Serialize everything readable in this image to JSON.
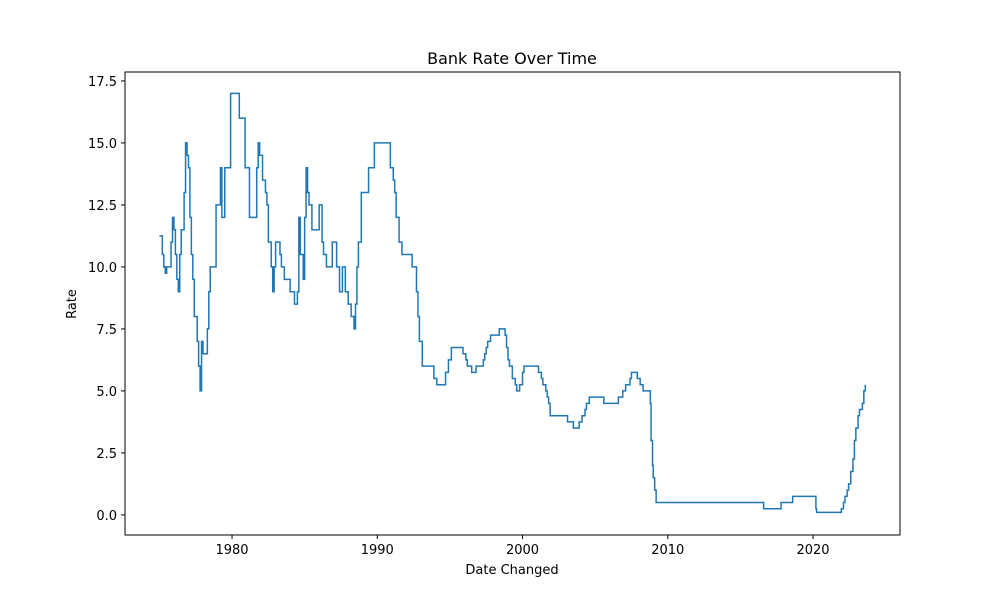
{
  "chart_data": {
    "type": "line",
    "drawstyle": "steps-post",
    "title": "Bank Rate Over Time",
    "xlabel": "Date Changed",
    "ylabel": "Rate",
    "color": "#1f77b4",
    "grid": false,
    "x": [
      1975.0,
      1975.2,
      1975.3,
      1975.4,
      1975.5,
      1975.8,
      1975.9,
      1976.0,
      1976.1,
      1976.2,
      1976.3,
      1976.4,
      1976.5,
      1976.7,
      1976.8,
      1976.9,
      1977.0,
      1977.1,
      1977.2,
      1977.3,
      1977.4,
      1977.6,
      1977.7,
      1977.8,
      1977.9,
      1978.0,
      1978.3,
      1978.4,
      1978.5,
      1978.9,
      1979.2,
      1979.3,
      1979.5,
      1979.9,
      1980.5,
      1980.9,
      1981.2,
      1981.7,
      1981.8,
      1981.9,
      1982.1,
      1982.3,
      1982.4,
      1982.5,
      1982.7,
      1982.8,
      1982.9,
      1983.0,
      1983.3,
      1983.4,
      1983.6,
      1984.0,
      1984.3,
      1984.5,
      1984.6,
      1984.7,
      1984.9,
      1985.0,
      1985.1,
      1985.2,
      1985.3,
      1985.5,
      1986.0,
      1986.2,
      1986.3,
      1986.5,
      1986.9,
      1987.2,
      1987.4,
      1987.6,
      1987.8,
      1988.0,
      1988.2,
      1988.4,
      1988.5,
      1988.6,
      1988.7,
      1988.9,
      1989.4,
      1989.8,
      1990.9,
      1991.1,
      1991.2,
      1991.3,
      1991.5,
      1991.7,
      1992.4,
      1992.7,
      1992.8,
      1992.9,
      1993.1,
      1993.9,
      1994.1,
      1994.7,
      1994.9,
      1995.1,
      1995.9,
      1996.1,
      1996.2,
      1996.5,
      1996.8,
      1997.3,
      1997.4,
      1997.5,
      1997.6,
      1997.8,
      1998.4,
      1998.8,
      1998.9,
      1999.0,
      1999.1,
      1999.3,
      1999.5,
      1999.6,
      1999.8,
      2000.0,
      2000.1,
      2001.1,
      2001.3,
      2001.4,
      2001.6,
      2001.7,
      2001.8,
      2001.9,
      2003.1,
      2003.5,
      2003.9,
      2004.1,
      2004.3,
      2004.4,
      2004.6,
      2005.6,
      2006.6,
      2006.9,
      2007.1,
      2007.4,
      2007.5,
      2007.9,
      2008.1,
      2008.3,
      2008.8,
      2008.85,
      2008.95,
      2009.0,
      2009.1,
      2009.2,
      2016.6,
      2017.8,
      2018.6,
      2020.2,
      2020.25,
      2021.95,
      2022.1,
      2022.2,
      2022.35,
      2022.45,
      2022.6,
      2022.75,
      2022.85,
      2022.95,
      2023.1,
      2023.2,
      2023.4,
      2023.5,
      2023.6
    ],
    "values": [
      11.25,
      10.5,
      10.0,
      9.75,
      10.0,
      11.0,
      12.0,
      11.5,
      10.5,
      9.5,
      9.0,
      10.5,
      11.5,
      13.0,
      15.0,
      14.5,
      14.0,
      12.0,
      10.5,
      9.5,
      8.0,
      7.0,
      6.0,
      5.0,
      7.0,
      6.5,
      7.5,
      9.0,
      10.0,
      12.5,
      14.0,
      12.0,
      14.0,
      17.0,
      16.0,
      14.0,
      12.0,
      14.0,
      15.0,
      14.5,
      13.5,
      13.0,
      12.5,
      11.0,
      10.0,
      9.0,
      10.0,
      11.0,
      10.5,
      10.0,
      9.5,
      9.0,
      8.5,
      9.0,
      12.0,
      10.5,
      9.5,
      12.0,
      14.0,
      13.0,
      12.5,
      11.5,
      12.5,
      11.0,
      10.5,
      10.0,
      11.0,
      10.0,
      9.0,
      10.0,
      9.0,
      8.5,
      8.0,
      7.5,
      8.5,
      10.0,
      11.0,
      13.0,
      14.0,
      15.0,
      14.0,
      13.5,
      13.0,
      12.0,
      11.0,
      10.5,
      10.0,
      9.0,
      8.0,
      7.0,
      6.0,
      5.5,
      5.25,
      5.75,
      6.25,
      6.75,
      6.5,
      6.25,
      6.0,
      5.75,
      6.0,
      6.25,
      6.5,
      6.75,
      7.0,
      7.25,
      7.5,
      7.25,
      6.75,
      6.25,
      6.0,
      5.5,
      5.25,
      5.0,
      5.25,
      5.75,
      6.0,
      5.75,
      5.5,
      5.25,
      5.0,
      4.75,
      4.5,
      4.0,
      3.75,
      3.5,
      3.75,
      4.0,
      4.25,
      4.5,
      4.75,
      4.5,
      4.75,
      5.0,
      5.25,
      5.5,
      5.75,
      5.5,
      5.25,
      5.0,
      4.5,
      3.0,
      2.0,
      1.5,
      1.0,
      0.5,
      0.25,
      0.5,
      0.75,
      0.25,
      0.1,
      0.25,
      0.5,
      0.75,
      1.0,
      1.25,
      1.75,
      2.25,
      3.0,
      3.5,
      4.0,
      4.25,
      4.5,
      5.0,
      5.25
    ],
    "xlim": [
      1972.63,
      2025.99
    ],
    "xticks": [
      1980,
      1990,
      2000,
      2010,
      2020
    ],
    "ylim": [
      -0.81,
      17.86
    ],
    "yticks": [
      {
        "value": 0,
        "label": "0.0"
      },
      2.5,
      {
        "value": 5,
        "label": "5.0"
      },
      7.5,
      {
        "value": 10,
        "label": "10.0"
      },
      12.5,
      {
        "value": 15,
        "label": "15.0"
      },
      17.5
    ]
  }
}
